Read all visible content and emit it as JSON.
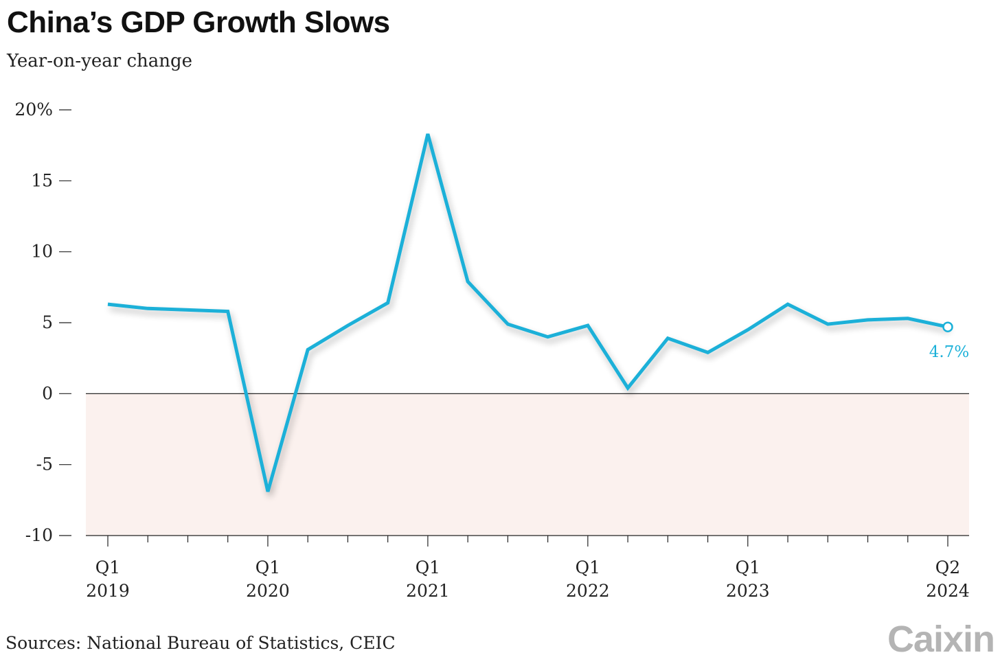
{
  "title": "China’s GDP Growth Slows",
  "subtitle": "Year-on-year change",
  "source": "Sources: National Bureau of Statistics, CEIC",
  "logo_text": "Caixin",
  "colors": {
    "line": "#1ab0d8",
    "negative_band": "#fbf1ee",
    "zero_line": "#111111",
    "axis": "#222222",
    "logo": "#b4b4b4"
  },
  "chart_data": {
    "type": "line",
    "title": "China’s GDP Growth Slows",
    "subtitle": "Year-on-year change",
    "ylim": [
      -10,
      20
    ],
    "yticks": [
      {
        "value": 20,
        "label": "20%"
      },
      {
        "value": 15,
        "label": "15"
      },
      {
        "value": 10,
        "label": "10"
      },
      {
        "value": 5,
        "label": "5"
      },
      {
        "value": 0,
        "label": "0"
      },
      {
        "value": -5,
        "label": "-5"
      },
      {
        "value": -10,
        "label": "-10"
      }
    ],
    "categories": [
      "Q1 2019",
      "Q2 2019",
      "Q3 2019",
      "Q4 2019",
      "Q1 2020",
      "Q2 2020",
      "Q3 2020",
      "Q4 2020",
      "Q1 2021",
      "Q2 2021",
      "Q3 2021",
      "Q4 2021",
      "Q1 2022",
      "Q2 2022",
      "Q3 2022",
      "Q4 2022",
      "Q1 2023",
      "Q2 2023",
      "Q3 2023",
      "Q4 2023",
      "Q1 2024",
      "Q2 2024"
    ],
    "xticks": [
      {
        "index": 0,
        "quarter": "Q1",
        "year": "2019"
      },
      {
        "index": 4,
        "quarter": "Q1",
        "year": "2020"
      },
      {
        "index": 8,
        "quarter": "Q1",
        "year": "2021"
      },
      {
        "index": 12,
        "quarter": "Q1",
        "year": "2022"
      },
      {
        "index": 16,
        "quarter": "Q1",
        "year": "2023"
      },
      {
        "index": 21,
        "quarter": "Q2",
        "year": "2024"
      }
    ],
    "series": [
      {
        "values": [
          6.3,
          6.0,
          5.9,
          5.8,
          -6.9,
          3.1,
          4.8,
          6.4,
          18.3,
          7.9,
          4.9,
          4.0,
          4.8,
          0.4,
          3.9,
          2.9,
          4.5,
          6.3,
          4.9,
          5.2,
          5.3,
          4.7
        ]
      }
    ],
    "end_label": "4.7%",
    "negative_region_shaded": true,
    "grid": false
  }
}
